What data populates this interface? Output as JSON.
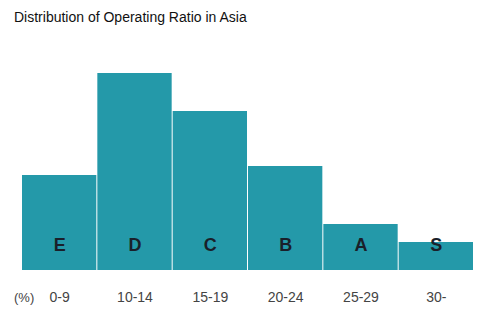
{
  "chart_data": {
    "type": "bar",
    "title": "Distribution of Operating Ratio in Asia",
    "x_label": "(%)",
    "categories": [
      "0-9",
      "10-14",
      "15-19",
      "20-24",
      "25-29",
      "30-"
    ],
    "values": [
      95,
      197,
      159,
      104,
      46,
      28
    ],
    "grades": [
      "E",
      "D",
      "C",
      "B",
      "A",
      "S"
    ],
    "color": "#2499a9",
    "ylim": [
      0,
      200
    ],
    "grid": false,
    "tick_labels": "x"
  }
}
